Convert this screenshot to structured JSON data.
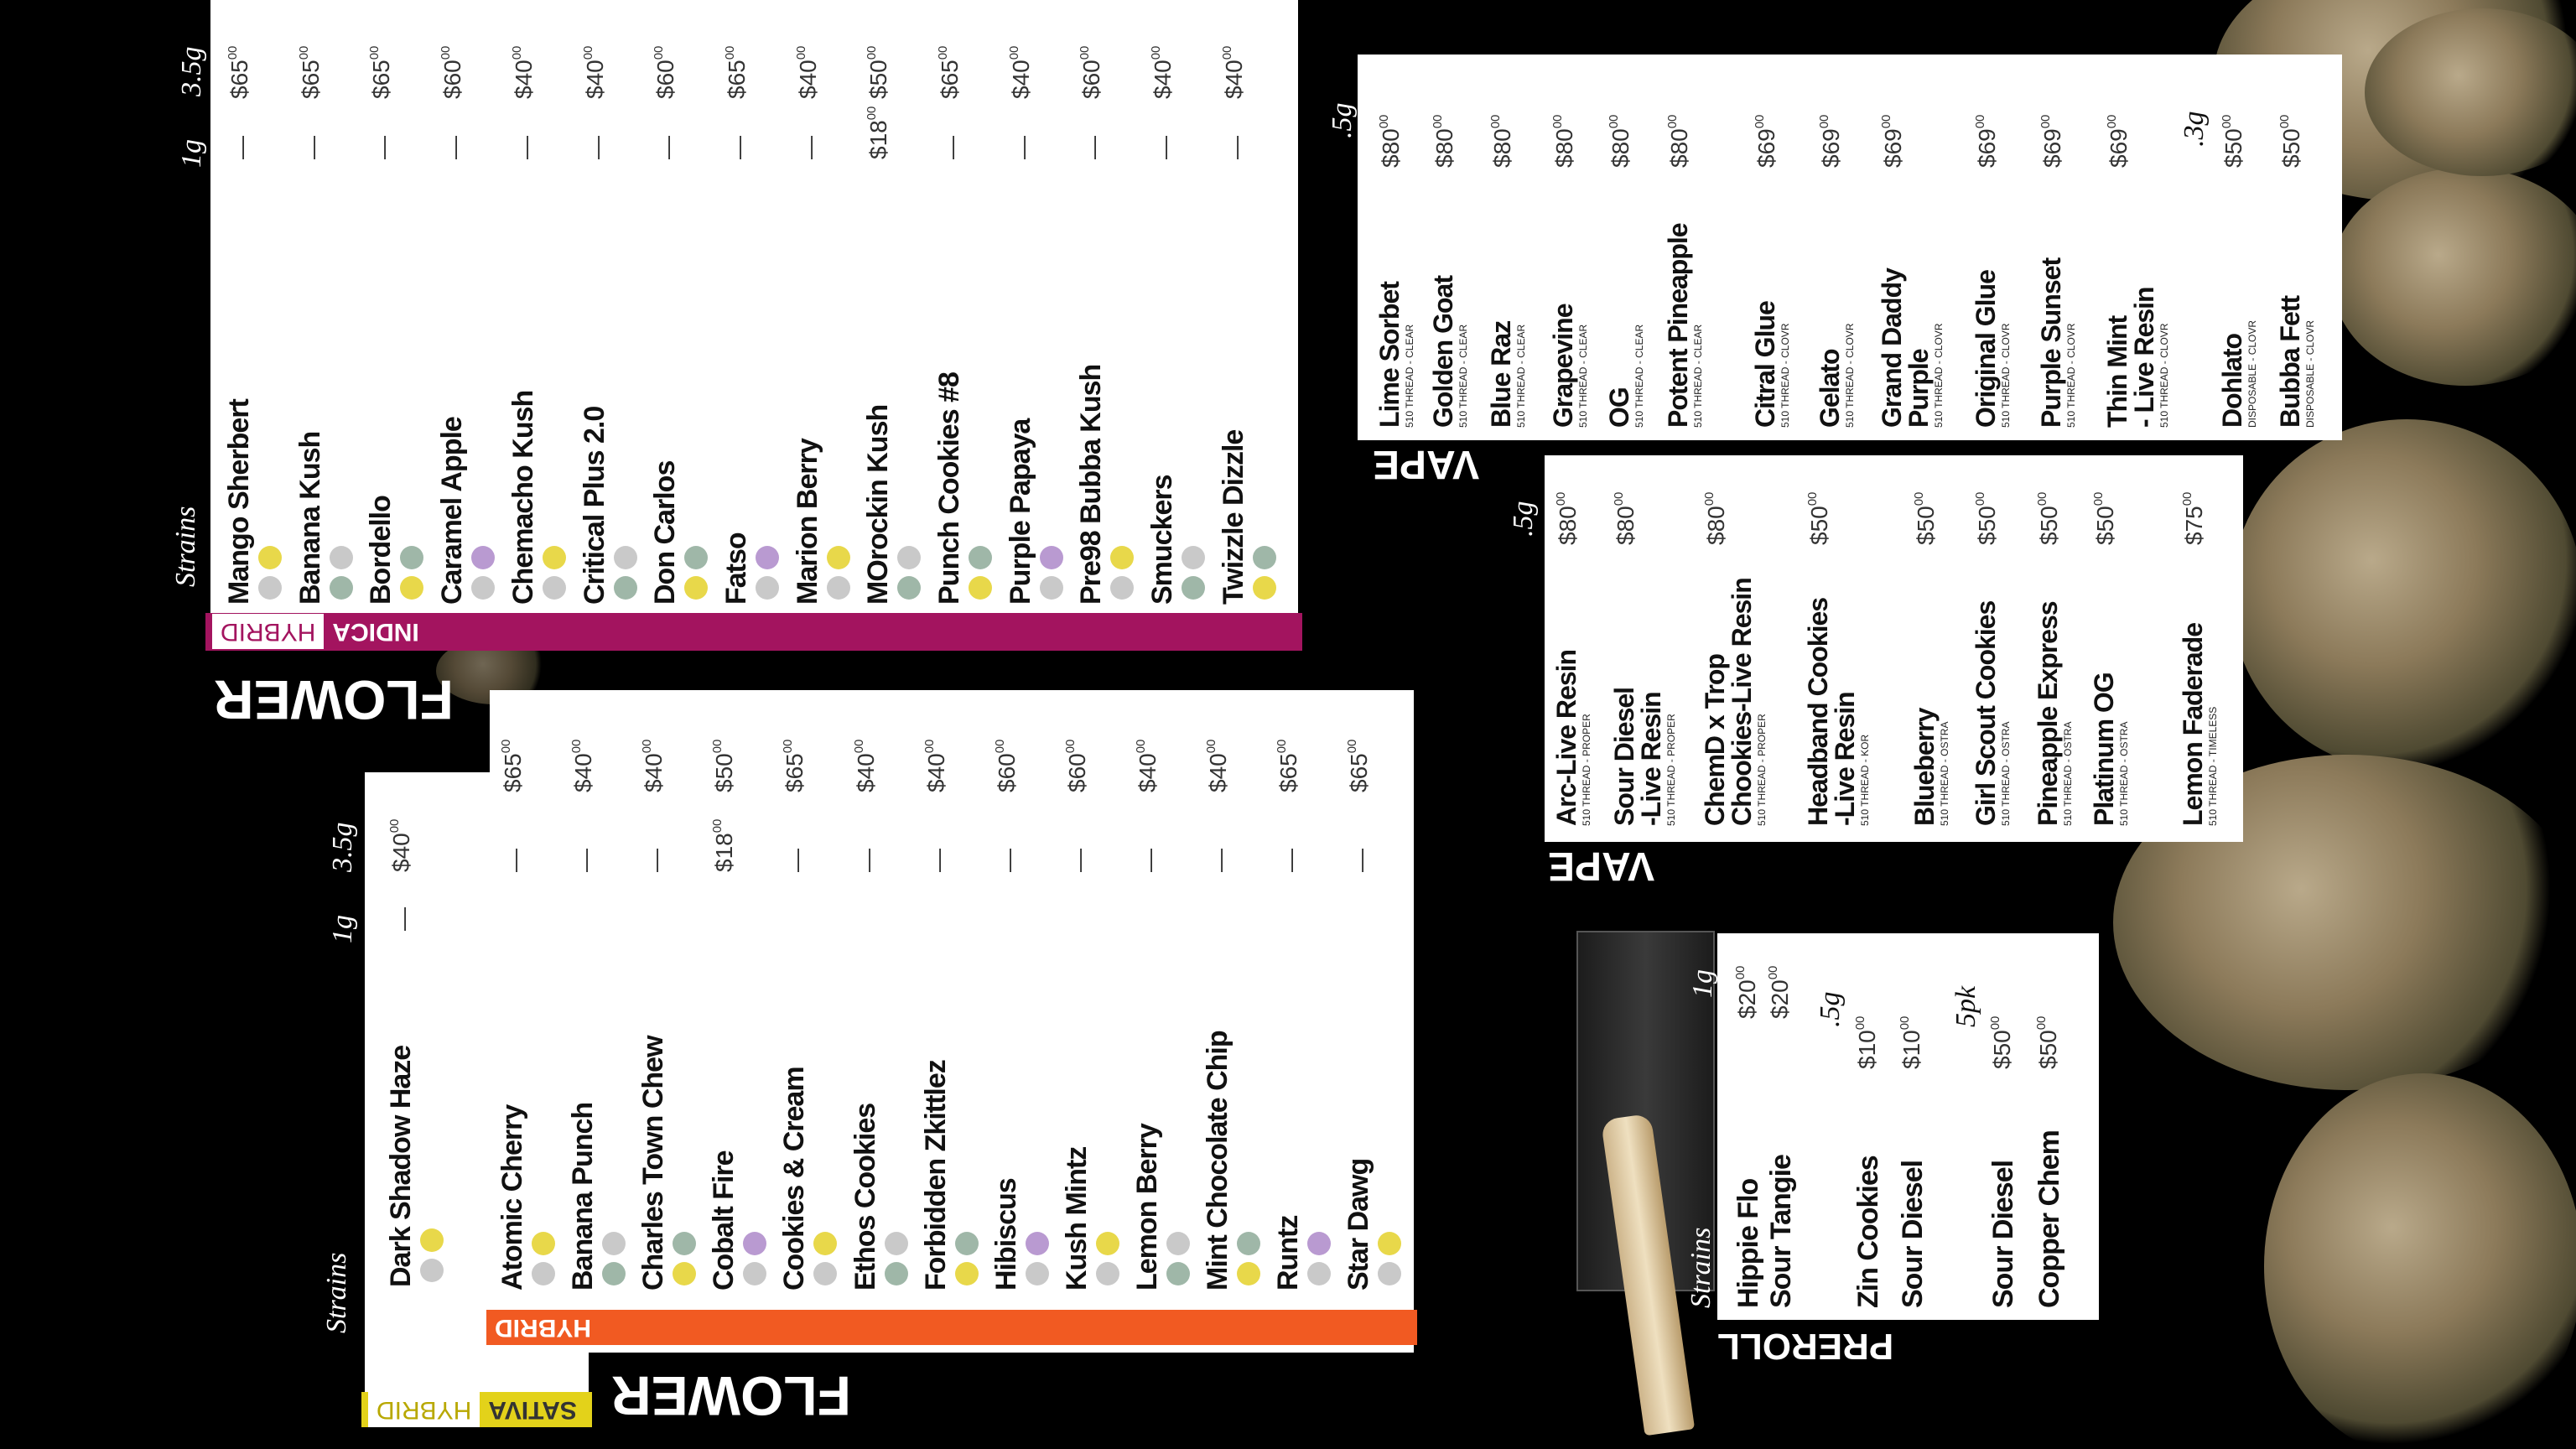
{
  "flower_indica": {
    "header": "FLOWER",
    "tabs": [
      "INDICA",
      "HYBRID"
    ],
    "columns": [
      "Strains",
      "1g",
      "3.5g"
    ],
    "items": [
      {
        "name": "Mango Sherbert",
        "g1": "—",
        "price": [
          "$65",
          "00"
        ]
      },
      {
        "name": "Banana Kush",
        "g1": "—",
        "price": [
          "$65",
          "00"
        ]
      },
      {
        "name": "Bordello",
        "g1": "—",
        "price": [
          "$65",
          "00"
        ]
      },
      {
        "name": "Caramel Apple",
        "g1": "—",
        "price": [
          "$60",
          "00"
        ]
      },
      {
        "name": "Chemacho Kush",
        "g1": "—",
        "price": [
          "$40",
          "00"
        ]
      },
      {
        "name": "Critical Plus 2.0",
        "g1": "—",
        "price": [
          "$40",
          "00"
        ]
      },
      {
        "name": "Don Carlos",
        "g1": "—",
        "price": [
          "$60",
          "00"
        ]
      },
      {
        "name": "Fatso",
        "g1": "—",
        "price": [
          "$65",
          "00"
        ]
      },
      {
        "name": "Marion Berry",
        "g1": "—",
        "price": [
          "$40",
          "00"
        ]
      },
      {
        "name": "MOrockin Kush",
        "g1": [
          "$18",
          "00"
        ],
        "price": [
          "$50",
          "00"
        ]
      },
      {
        "name": "Punch Cookies #8",
        "g1": "—",
        "price": [
          "$65",
          "00"
        ]
      },
      {
        "name": "Purple Papaya",
        "g1": "—",
        "price": [
          "$40",
          "00"
        ]
      },
      {
        "name": "Pre98 Bubba Kush",
        "g1": "—",
        "price": [
          "$60",
          "00"
        ]
      },
      {
        "name": "Smuckers",
        "g1": "—",
        "price": [
          "$40",
          "00"
        ]
      },
      {
        "name": "Twizzle Dizzle",
        "g1": "—",
        "price": [
          "$40",
          "00"
        ]
      }
    ]
  },
  "flower_sativa": {
    "header": "FLOWER",
    "tabs": [
      "SATIVA",
      "HYBRID"
    ],
    "columns": [
      "Strains",
      "1g",
      "3.5g"
    ],
    "items": [
      {
        "name": "Dark Shadow Haze",
        "g1": "—",
        "price": [
          "$40",
          "00"
        ]
      }
    ]
  },
  "flower_hybrid": {
    "tabs": [
      "HYBRID"
    ],
    "items": [
      {
        "name": "Atomic Cherry",
        "g1": "—",
        "price": [
          "$65",
          "00"
        ]
      },
      {
        "name": "Banana Punch",
        "g1": "—",
        "price": [
          "$40",
          "00"
        ]
      },
      {
        "name": "Charles Town Chew",
        "g1": "—",
        "price": [
          "$40",
          "00"
        ]
      },
      {
        "name": "Cobalt Fire",
        "g1": [
          "$18",
          "00"
        ],
        "price": [
          "$50",
          "00"
        ]
      },
      {
        "name": "Cookies & Cream",
        "g1": "—",
        "price": [
          "$65",
          "00"
        ]
      },
      {
        "name": "Ethos Cookies",
        "g1": "—",
        "price": [
          "$40",
          "00"
        ]
      },
      {
        "name": "Forbidden Zkittlez",
        "g1": "—",
        "price": [
          "$40",
          "00"
        ]
      },
      {
        "name": "Hibiscus",
        "g1": "—",
        "price": [
          "$60",
          "00"
        ]
      },
      {
        "name": "Kush Mintz",
        "g1": "—",
        "price": [
          "$60",
          "00"
        ]
      },
      {
        "name": "Lemon Berry",
        "g1": "—",
        "price": [
          "$40",
          "00"
        ]
      },
      {
        "name": "Mint Chocolate Chip",
        "g1": "—",
        "price": [
          "$40",
          "00"
        ]
      },
      {
        "name": "Runtz",
        "g1": "—",
        "price": [
          "$65",
          "00"
        ]
      },
      {
        "name": "Star Dawg",
        "g1": "—",
        "price": [
          "$65",
          "00"
        ]
      }
    ]
  },
  "vape_1": {
    "header": "VAPE",
    "groups": [
      {
        "size": ".5g",
        "items": [
          {
            "name": [
              "Lime Sorbet"
            ],
            "sub": "510 THREAD - CLEAR",
            "price": [
              "$80",
              "00"
            ]
          },
          {
            "name": [
              "Golden Goat"
            ],
            "sub": "510 THREAD - CLEAR",
            "price": [
              "$80",
              "00"
            ]
          },
          {
            "name": [
              "Blue Raz"
            ],
            "sub": "510 THREAD - CLEAR",
            "price": [
              "$80",
              "00"
            ]
          },
          {
            "name": [
              "Grapevine"
            ],
            "sub": "510 THREAD - CLEAR",
            "price": [
              "$80",
              "00"
            ]
          },
          {
            "name": [
              "OG"
            ],
            "sub": "510 THREAD - CLEAR",
            "price": [
              "$80",
              "00"
            ]
          },
          {
            "name": [
              "Potent Pineapple"
            ],
            "sub": "510 THREAD - CLEAR",
            "price": [
              "$80",
              "00"
            ]
          },
          {
            "name": [
              "Citral Glue"
            ],
            "sub": "510 THREAD - CLOVR",
            "price": [
              "$69",
              "00"
            ]
          },
          {
            "name": [
              "Gelato"
            ],
            "sub": "510 THREAD - CLOVR",
            "price": [
              "$69",
              "00"
            ]
          },
          {
            "name": [
              "Grand Daddy",
              "Purple"
            ],
            "sub": "510 THREAD - CLOVR",
            "price": [
              "$69",
              "00"
            ]
          },
          {
            "name": [
              "Original Glue"
            ],
            "sub": "510 THREAD - CLOVR",
            "price": [
              "$69",
              "00"
            ]
          },
          {
            "name": [
              "Purple Sunset"
            ],
            "sub": "510 THREAD - CLOVR",
            "price": [
              "$69",
              "00"
            ]
          },
          {
            "name": [
              "Thin Mint",
              "- Live Resin"
            ],
            "sub": "510 THREAD - CLOVR",
            "price": [
              "$69",
              "00"
            ]
          }
        ]
      },
      {
        "size": ".3g",
        "items": [
          {
            "name": [
              "Dohlato"
            ],
            "sub": "DISPOSABLE - CLOVR",
            "price": [
              "$50",
              "00"
            ]
          },
          {
            "name": [
              "Bubba Fett"
            ],
            "sub": "DISPOSABLE - CLOVR",
            "price": [
              "$50",
              "00"
            ]
          }
        ]
      }
    ]
  },
  "vape_2": {
    "header": "VAPE",
    "groups": [
      {
        "size": ".5g",
        "items": [
          {
            "name": [
              "Arc-Live Resin"
            ],
            "sub": "510 THREAD - PROPER",
            "price": [
              "$80",
              "00"
            ]
          },
          {
            "name": [
              "Sour Diesel",
              "-Live Resin"
            ],
            "sub": "510 THREAD - PROPER",
            "price": [
              "$80",
              "00"
            ]
          },
          {
            "name": [
              "ChemD x Trop",
              "Chookies-Live Resin"
            ],
            "sub": "510 THREAD - PROPER",
            "price": [
              "$80",
              "00"
            ]
          },
          {
            "name": [
              "Headband Cookies",
              "-Live Resin"
            ],
            "sub": "510 THREAD - KOR",
            "price": [
              "$50",
              "00"
            ]
          },
          {
            "name": [
              "Blueberry"
            ],
            "sub": "510 THREAD - OSTRA",
            "price": [
              "$50",
              "00"
            ]
          },
          {
            "name": [
              "Girl Scout Cookies"
            ],
            "sub": "510 THREAD - OSTRA",
            "price": [
              "$50",
              "00"
            ]
          },
          {
            "name": [
              "Pineapple Express"
            ],
            "sub": "510 THREAD - OSTRA",
            "price": [
              "$50",
              "00"
            ]
          },
          {
            "name": [
              "Platinum OG"
            ],
            "sub": "510 THREAD - OSTRA",
            "price": [
              "$50",
              "00"
            ]
          },
          {
            "name": [
              "Lemon Faderade"
            ],
            "sub": "510 THREAD - TIMELESS",
            "price": [
              "$75",
              "00"
            ]
          }
        ]
      }
    ]
  },
  "preroll": {
    "header": "PREROLL",
    "column_label": "Strains",
    "groups": [
      {
        "size": "1g",
        "items": [
          {
            "name": "Hippie Flo",
            "price": [
              "$20",
              "00"
            ]
          },
          {
            "name": "Sour Tangie",
            "price": [
              "$20",
              "00"
            ]
          }
        ]
      },
      {
        "size": ".5g",
        "items": [
          {
            "name": "Zin Cookies",
            "price": [
              "$10",
              "00"
            ]
          },
          {
            "name": "Sour Diesel",
            "price": [
              "$10",
              "00"
            ]
          }
        ]
      },
      {
        "size": "5pk",
        "items": [
          {
            "name": "Sour Diesel",
            "price": [
              "$50",
              "00"
            ]
          },
          {
            "name": "Copper Chem",
            "price": [
              "$50",
              "00"
            ]
          }
        ]
      }
    ]
  }
}
